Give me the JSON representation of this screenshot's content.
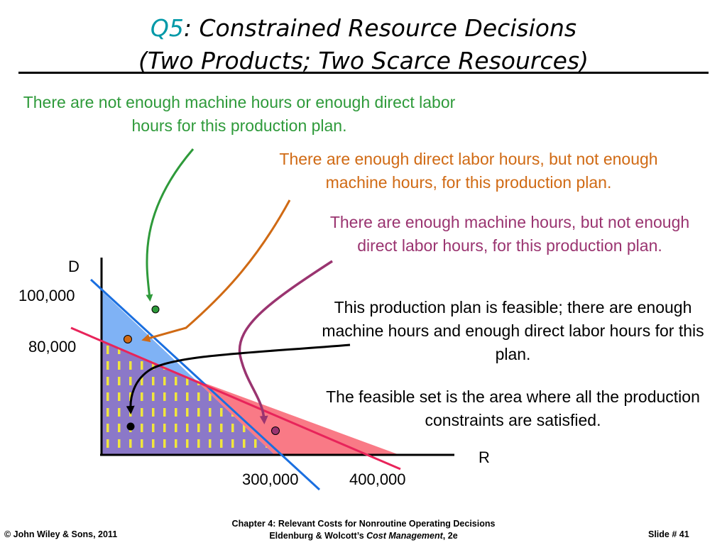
{
  "slide": {
    "title_q": "Q5",
    "title_rest": ": Constrained Resource Decisions",
    "title_line2": "(Two Products; Two Scarce Resources)",
    "notes": {
      "green": "There are not enough machine hours or enough direct labor hours for this production plan.",
      "orange": "There are enough direct labor hours, but not enough machine hours, for this production plan.",
      "purple": "There are enough machine hours, but not enough direct labor hours, for this production plan.",
      "feasible": "This production plan is feasible; there are enough machine hours and enough direct labor hours for this plan.",
      "feasible_set": "The feasible set is the area where all the production constraints are satisfied."
    },
    "axes": {
      "y_label": "D",
      "x_label": "R",
      "y_tick_high": "100,000",
      "y_tick_low": "80,000",
      "x_tick_low": "300,000",
      "x_tick_high": "400,000"
    },
    "colors": {
      "green": "#2e9a3a",
      "orange": "#d06a14",
      "purple": "#9a3470",
      "blue_line": "#1a6fe0",
      "red_line": "#e8245a",
      "feasible_fill": "#8b78c8",
      "hatch": "#f0e63c"
    },
    "footer": {
      "copyright": "© John Wiley & Sons, 2011",
      "chapter": "Chapter 4: Relevant Costs for Nonroutine Operating Decisions",
      "book_prefix": "Eldenburg & Wolcott’s ",
      "book_title": "Cost Management",
      "book_suffix": ", 2e",
      "slide_label": "Slide #  41"
    }
  }
}
